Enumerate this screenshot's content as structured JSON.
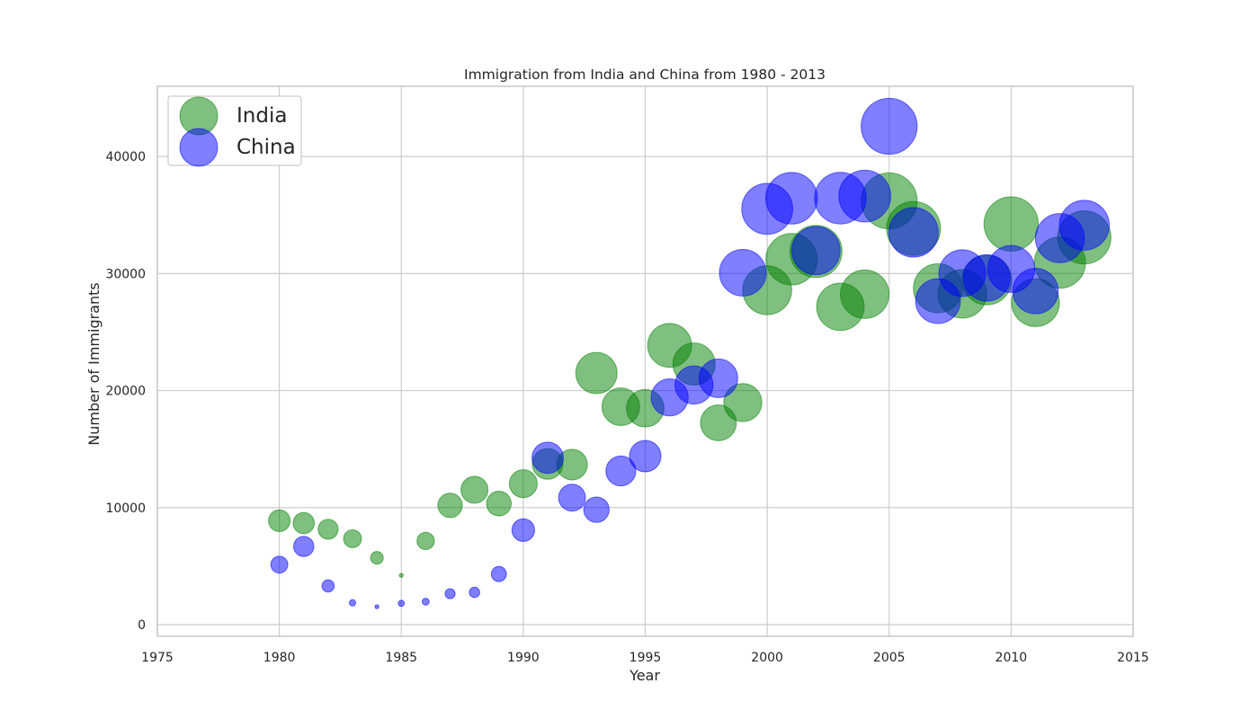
{
  "chart_data": {
    "type": "scatter",
    "title": "Immigration from India and China from 1980 - 2013",
    "xlabel": "Year",
    "ylabel": "Number of Immigrants",
    "xlim": [
      1975,
      2015
    ],
    "ylim": [
      -1000,
      46000
    ],
    "x_ticks": [
      1975,
      1980,
      1985,
      1990,
      1995,
      2000,
      2005,
      2010,
      2015
    ],
    "y_ticks": [
      0,
      10000,
      20000,
      30000,
      40000
    ],
    "grid": true,
    "legend_position": "top-left",
    "bubble_size_encodes": "immigrant count (normalized per series)",
    "series": [
      {
        "name": "India",
        "color": "#008000",
        "x": [
          1980,
          1981,
          1982,
          1983,
          1984,
          1985,
          1986,
          1987,
          1988,
          1989,
          1990,
          1991,
          1992,
          1993,
          1994,
          1995,
          1996,
          1997,
          1998,
          1999,
          2000,
          2001,
          2002,
          2003,
          2004,
          2005,
          2006,
          2007,
          2008,
          2009,
          2010,
          2011,
          2012,
          2013
        ],
        "values": [
          8880,
          8670,
          8147,
          7338,
          5704,
          4211,
          7150,
          10189,
          11522,
          10343,
          12041,
          13734,
          13673,
          21496,
          18620,
          18489,
          23859,
          22268,
          17241,
          18974,
          28572,
          31223,
          31889,
          27155,
          28235,
          36210,
          33848,
          28742,
          28261,
          29456,
          34235,
          27509,
          30933,
          33087
        ]
      },
      {
        "name": "China",
        "color": "#0000ff",
        "x": [
          1980,
          1981,
          1982,
          1983,
          1984,
          1985,
          1986,
          1987,
          1988,
          1989,
          1990,
          1991,
          1992,
          1993,
          1994,
          1995,
          1996,
          1997,
          1998,
          1999,
          2000,
          2001,
          2002,
          2003,
          2004,
          2005,
          2006,
          2007,
          2008,
          2009,
          2010,
          2011,
          2012,
          2013
        ],
        "values": [
          5123,
          6682,
          3308,
          1863,
          1527,
          1816,
          1960,
          2643,
          2758,
          4323,
          8076,
          14255,
          10846,
          9817,
          13128,
          14398,
          19415,
          20475,
          21049,
          30069,
          35529,
          36434,
          31961,
          36439,
          36619,
          42584,
          33518,
          27642,
          30037,
          29622,
          30391,
          28502,
          33024,
          34129
        ]
      }
    ]
  }
}
